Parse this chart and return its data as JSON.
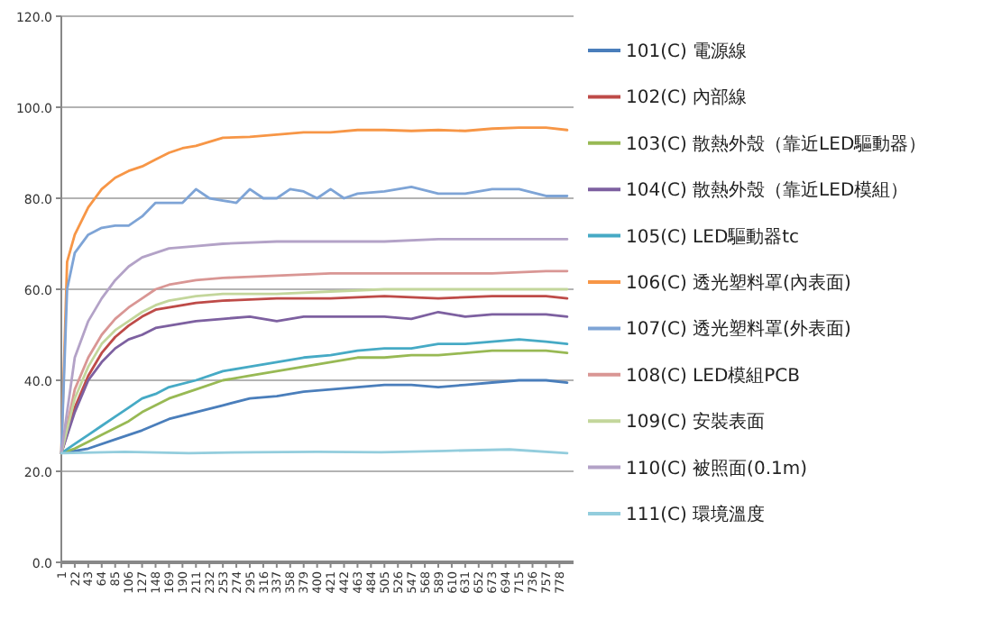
{
  "chart_data": {
    "type": "line",
    "grid": "y",
    "legend": "right",
    "marker": "none",
    "xlim": [
      1,
      800
    ],
    "xticks": [
      1,
      22,
      43,
      64,
      85,
      106,
      127,
      148,
      169,
      190,
      211,
      232,
      253,
      274,
      295,
      316,
      337,
      358,
      379,
      400,
      421,
      442,
      463,
      484,
      505,
      526,
      547,
      568,
      589,
      610,
      631,
      652,
      673,
      694,
      715,
      736,
      757,
      778
    ],
    "ylim": [
      0,
      120
    ],
    "yticks": [
      {
        "value": 0,
        "label": "0.0"
      },
      {
        "value": 20,
        "label": "20.0"
      },
      {
        "value": 40,
        "label": "40.0"
      },
      {
        "value": 60,
        "label": "60.0"
      },
      {
        "value": 80,
        "label": "80.0"
      },
      {
        "value": 100,
        "label": "100.0"
      },
      {
        "value": 120,
        "label": "120.0"
      }
    ],
    "series": [
      {
        "name": "101(C) 電源線",
        "color": "#4a7ebb",
        "x": [
          1,
          43,
          85,
          127,
          169,
          211,
          253,
          295,
          337,
          379,
          421,
          463,
          505,
          547,
          589,
          631,
          673,
          715,
          757,
          790
        ],
        "values": [
          24,
          25,
          27,
          29,
          31.5,
          33,
          34.5,
          36,
          36.5,
          37.5,
          38,
          38.5,
          39,
          39,
          38.5,
          39,
          39.5,
          40,
          40,
          39.5
        ]
      },
      {
        "name": "102(C) 內部線",
        "color": "#be4b48",
        "x": [
          1,
          22,
          43,
          64,
          85,
          106,
          127,
          148,
          169,
          211,
          253,
          337,
          421,
          505,
          589,
          673,
          757,
          790
        ],
        "values": [
          24,
          34,
          41,
          46,
          49.5,
          52,
          54,
          55.5,
          56,
          57,
          57.5,
          58,
          58,
          58.5,
          58,
          58.5,
          58.5,
          58
        ]
      },
      {
        "name": "103(C) 散熱外殼（靠近LED驅動器）",
        "color": "#98b954",
        "x": [
          1,
          22,
          43,
          64,
          85,
          106,
          127,
          148,
          169,
          211,
          253,
          295,
          337,
          379,
          421,
          463,
          505,
          547,
          589,
          631,
          673,
          715,
          757,
          790
        ],
        "values": [
          24,
          25,
          26.5,
          28,
          29.5,
          31,
          33,
          34.5,
          36,
          38,
          40,
          41,
          42,
          43,
          44,
          45,
          45,
          45.5,
          45.5,
          46,
          46.5,
          46.5,
          46.5,
          46
        ]
      },
      {
        "name": "104(C) 散熱外殼（靠近LED模組）",
        "color": "#7d60a0",
        "x": [
          1,
          22,
          43,
          64,
          85,
          106,
          127,
          148,
          169,
          211,
          253,
          295,
          337,
          379,
          421,
          463,
          505,
          547,
          589,
          631,
          673,
          715,
          757,
          790
        ],
        "values": [
          24,
          33,
          40,
          44,
          47,
          49,
          50,
          51.5,
          52,
          53,
          53.5,
          54,
          53,
          54,
          54,
          54,
          54,
          53.5,
          55,
          54,
          54.5,
          54.5,
          54.5,
          54
        ]
      },
      {
        "name": "105(C) LED驅動器tc",
        "color": "#46aac5",
        "x": [
          1,
          22,
          43,
          64,
          85,
          106,
          127,
          148,
          169,
          211,
          253,
          295,
          337,
          379,
          421,
          463,
          505,
          547,
          589,
          631,
          673,
          715,
          757,
          790
        ],
        "values": [
          24,
          26,
          28,
          30,
          32,
          34,
          36,
          37,
          38.5,
          40,
          42,
          43,
          44,
          45,
          45.5,
          46.5,
          47,
          47,
          48,
          48,
          48.5,
          49,
          48.5,
          48
        ]
      },
      {
        "name": "106(C) 透光塑料罩(內表面)",
        "color": "#f79646",
        "x": [
          1,
          10,
          22,
          43,
          64,
          85,
          106,
          127,
          148,
          169,
          190,
          211,
          253,
          295,
          337,
          379,
          421,
          463,
          505,
          547,
          589,
          631,
          673,
          715,
          757,
          790
        ],
        "values": [
          24,
          66,
          72,
          78,
          82,
          84.5,
          86,
          87,
          88.5,
          90,
          91,
          91.5,
          93.3,
          93.5,
          94,
          94.5,
          94.5,
          95,
          95,
          94.8,
          95,
          94.8,
          95.3,
          95.5,
          95.5,
          95
        ]
      },
      {
        "name": "107(C) 透光塑料罩(外表面)",
        "color": "#7ea4d6",
        "x": [
          1,
          10,
          22,
          43,
          64,
          85,
          106,
          127,
          148,
          169,
          190,
          211,
          232,
          253,
          274,
          295,
          316,
          337,
          358,
          379,
          400,
          421,
          442,
          463,
          505,
          547,
          589,
          631,
          673,
          715,
          757,
          790
        ],
        "values": [
          24,
          60,
          68,
          72,
          73.5,
          74,
          74,
          76,
          79,
          79,
          79,
          82,
          80,
          79.5,
          79,
          82,
          80,
          80,
          82,
          81.5,
          80,
          82,
          80,
          81,
          81.5,
          82.5,
          81,
          81,
          82,
          82,
          80.5,
          80.5
        ]
      },
      {
        "name": "108(C) LED模組PCB",
        "color": "#d99694",
        "x": [
          1,
          22,
          43,
          64,
          85,
          106,
          127,
          148,
          169,
          211,
          253,
          337,
          421,
          505,
          589,
          673,
          757,
          790
        ],
        "values": [
          24,
          38,
          45,
          50,
          53.5,
          56,
          58,
          60,
          61,
          62,
          62.5,
          63,
          63.5,
          63.5,
          63.5,
          63.5,
          64,
          64
        ]
      },
      {
        "name": "109(C) 安裝表面",
        "color": "#c3d69b",
        "x": [
          1,
          22,
          43,
          64,
          85,
          106,
          127,
          148,
          169,
          211,
          253,
          337,
          421,
          505,
          589,
          673,
          757,
          790
        ],
        "values": [
          24,
          36,
          43,
          48,
          51,
          53,
          55,
          56.5,
          57.5,
          58.5,
          59,
          59,
          59.5,
          60,
          60,
          60,
          60,
          60
        ]
      },
      {
        "name": "110(C) 被照面(0.1m)",
        "color": "#b3a2c7",
        "x": [
          1,
          22,
          43,
          64,
          85,
          106,
          127,
          148,
          169,
          211,
          253,
          337,
          421,
          505,
          589,
          673,
          757,
          790
        ],
        "values": [
          24,
          45,
          53,
          58,
          62,
          65,
          67,
          68,
          69,
          69.5,
          70,
          70.5,
          70.5,
          70.5,
          71,
          71,
          71,
          71
        ]
      },
      {
        "name": "111(C) 環境溫度",
        "color": "#93cddd",
        "x": [
          1,
          100,
          200,
          300,
          400,
          500,
          600,
          700,
          790
        ],
        "values": [
          24,
          24.3,
          24,
          24.2,
          24.3,
          24.2,
          24.5,
          24.8,
          24
        ]
      }
    ]
  }
}
